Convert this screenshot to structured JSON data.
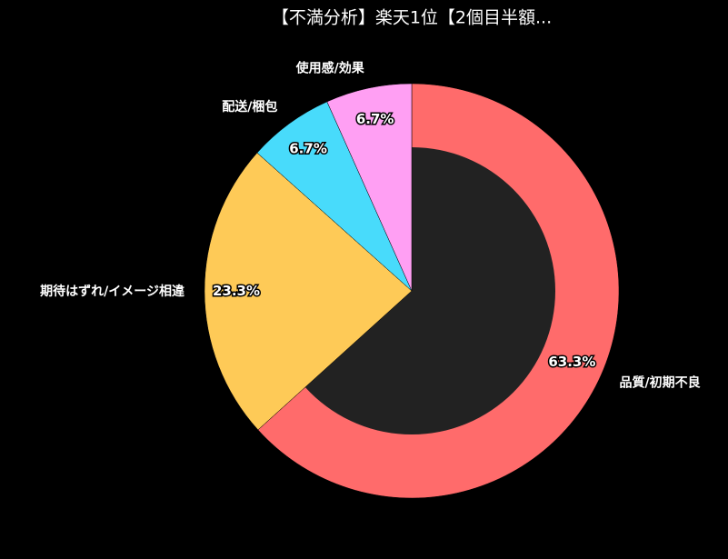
{
  "chart_data": {
    "type": "donut",
    "title": "【不満分析】楽天1位【2個目半額...",
    "categories": [
      "品質/初期不良",
      "期待はずれ/イメージ相違",
      "配送/梱包",
      "使用感/効果"
    ],
    "values": [
      63.3,
      23.3,
      6.7,
      6.7
    ],
    "value_labels": [
      "63.3%",
      "23.3%",
      "6.7%",
      "6.7%"
    ],
    "colors": [
      "#ff6b6b",
      "#feca57",
      "#48dbfb",
      "#ff9ff3"
    ]
  }
}
